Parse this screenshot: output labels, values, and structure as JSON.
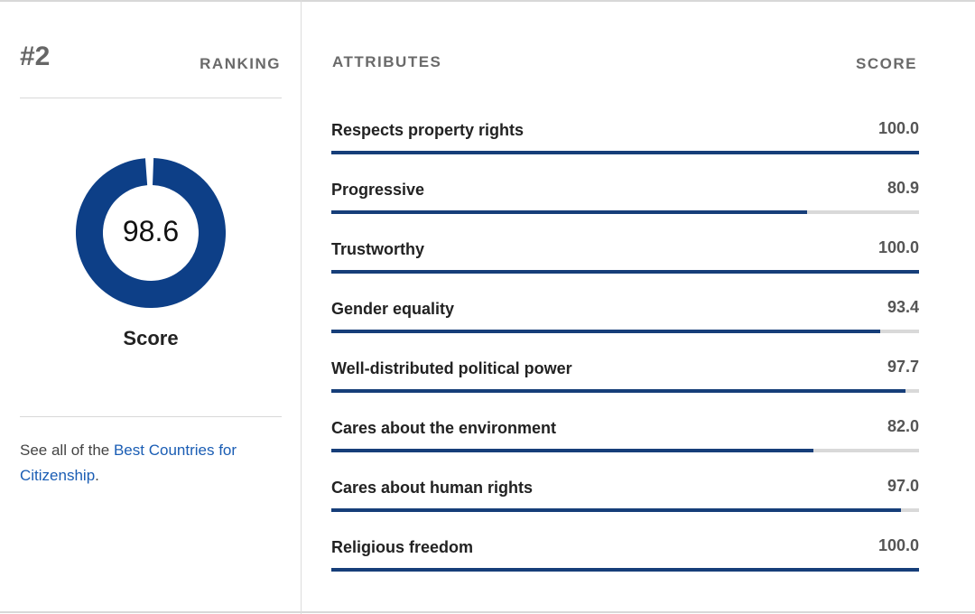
{
  "ranking": {
    "value": "#2",
    "label": "RANKING"
  },
  "overall": {
    "score": "98.6",
    "score_value": 98.6,
    "label": "Score",
    "color": "#0d3f87"
  },
  "see_all": {
    "prefix": "See all of the ",
    "link": "Best Countries for Citizenship",
    "suffix": "."
  },
  "attributes": {
    "header": "ATTRIBUTES",
    "score_header": "SCORE",
    "bar_color": "#163e79",
    "track_color": "#d9d9d9",
    "items": [
      {
        "label": "Respects property rights",
        "score": "100.0",
        "value": 100.0
      },
      {
        "label": "Progressive",
        "score": "80.9",
        "value": 80.9
      },
      {
        "label": "Trustworthy",
        "score": "100.0",
        "value": 100.0
      },
      {
        "label": "Gender equality",
        "score": "93.4",
        "value": 93.4
      },
      {
        "label": "Well-distributed political power",
        "score": "97.7",
        "value": 97.7
      },
      {
        "label": "Cares about the environment",
        "score": "82.0",
        "value": 82.0
      },
      {
        "label": "Cares about human rights",
        "score": "97.0",
        "value": 97.0
      },
      {
        "label": "Religious freedom",
        "score": "100.0",
        "value": 100.0
      }
    ]
  }
}
